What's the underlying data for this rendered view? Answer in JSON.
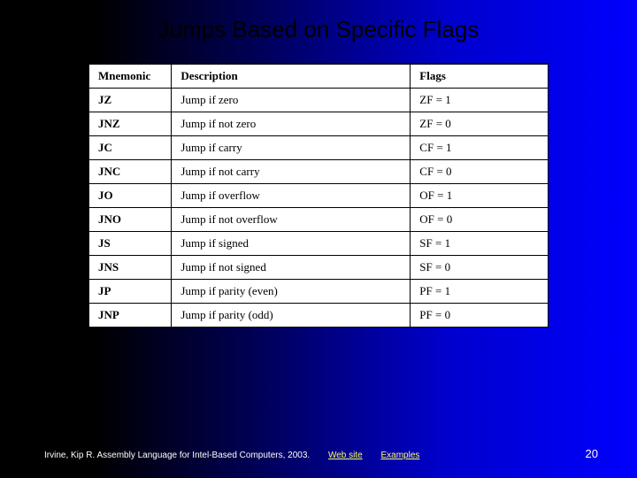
{
  "title": "Jumps Based on Specific Flags",
  "table": {
    "headers": {
      "mnemonic": "Mnemonic",
      "description": "Description",
      "flags": "Flags"
    },
    "rows": [
      {
        "mnemonic": "JZ",
        "description": "Jump if zero",
        "flags": "ZF = 1"
      },
      {
        "mnemonic": "JNZ",
        "description": "Jump if not zero",
        "flags": "ZF = 0"
      },
      {
        "mnemonic": "JC",
        "description": "Jump if carry",
        "flags": "CF = 1"
      },
      {
        "mnemonic": "JNC",
        "description": "Jump if not carry",
        "flags": "CF = 0"
      },
      {
        "mnemonic": "JO",
        "description": "Jump if overflow",
        "flags": "OF = 1"
      },
      {
        "mnemonic": "JNO",
        "description": "Jump if not overflow",
        "flags": "OF = 0"
      },
      {
        "mnemonic": "JS",
        "description": "Jump if signed",
        "flags": "SF = 1"
      },
      {
        "mnemonic": "JNS",
        "description": "Jump if not signed",
        "flags": "SF = 0"
      },
      {
        "mnemonic": "JP",
        "description": "Jump if parity (even)",
        "flags": "PF = 1"
      },
      {
        "mnemonic": "JNP",
        "description": "Jump if parity (odd)",
        "flags": "PF = 0"
      }
    ]
  },
  "footer": {
    "citation": "Irvine, Kip R. Assembly Language for Intel-Based Computers, 2003.",
    "link1": "Web site",
    "link2": "Examples",
    "pagenum": "20"
  }
}
